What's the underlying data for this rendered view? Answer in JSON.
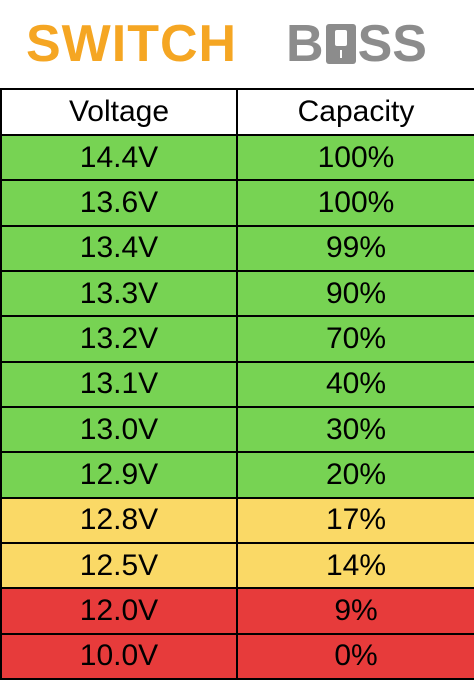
{
  "brand": {
    "part1": "SWITCH",
    "part2_prefix": "B",
    "part2_suffix": "SS",
    "primary_color": "#F5A623",
    "secondary_color": "#8C8C8C"
  },
  "table": {
    "headers": [
      "Voltage",
      "Capacity"
    ],
    "rows": [
      {
        "voltage": "14.4V",
        "capacity": "100%",
        "status": "green"
      },
      {
        "voltage": "13.6V",
        "capacity": "100%",
        "status": "green"
      },
      {
        "voltage": "13.4V",
        "capacity": "99%",
        "status": "green"
      },
      {
        "voltage": "13.3V",
        "capacity": "90%",
        "status": "green"
      },
      {
        "voltage": "13.2V",
        "capacity": "70%",
        "status": "green"
      },
      {
        "voltage": "13.1V",
        "capacity": "40%",
        "status": "green"
      },
      {
        "voltage": "13.0V",
        "capacity": "30%",
        "status": "green"
      },
      {
        "voltage": "12.9V",
        "capacity": "20%",
        "status": "green"
      },
      {
        "voltage": "12.8V",
        "capacity": "17%",
        "status": "yellow"
      },
      {
        "voltage": "12.5V",
        "capacity": "14%",
        "status": "yellow"
      },
      {
        "voltage": "12.0V",
        "capacity": "9%",
        "status": "red"
      },
      {
        "voltage": "10.0V",
        "capacity": "0%",
        "status": "red"
      }
    ],
    "status_colors": {
      "green": "#77D353",
      "yellow": "#FAD966",
      "red": "#E73B3B"
    }
  }
}
